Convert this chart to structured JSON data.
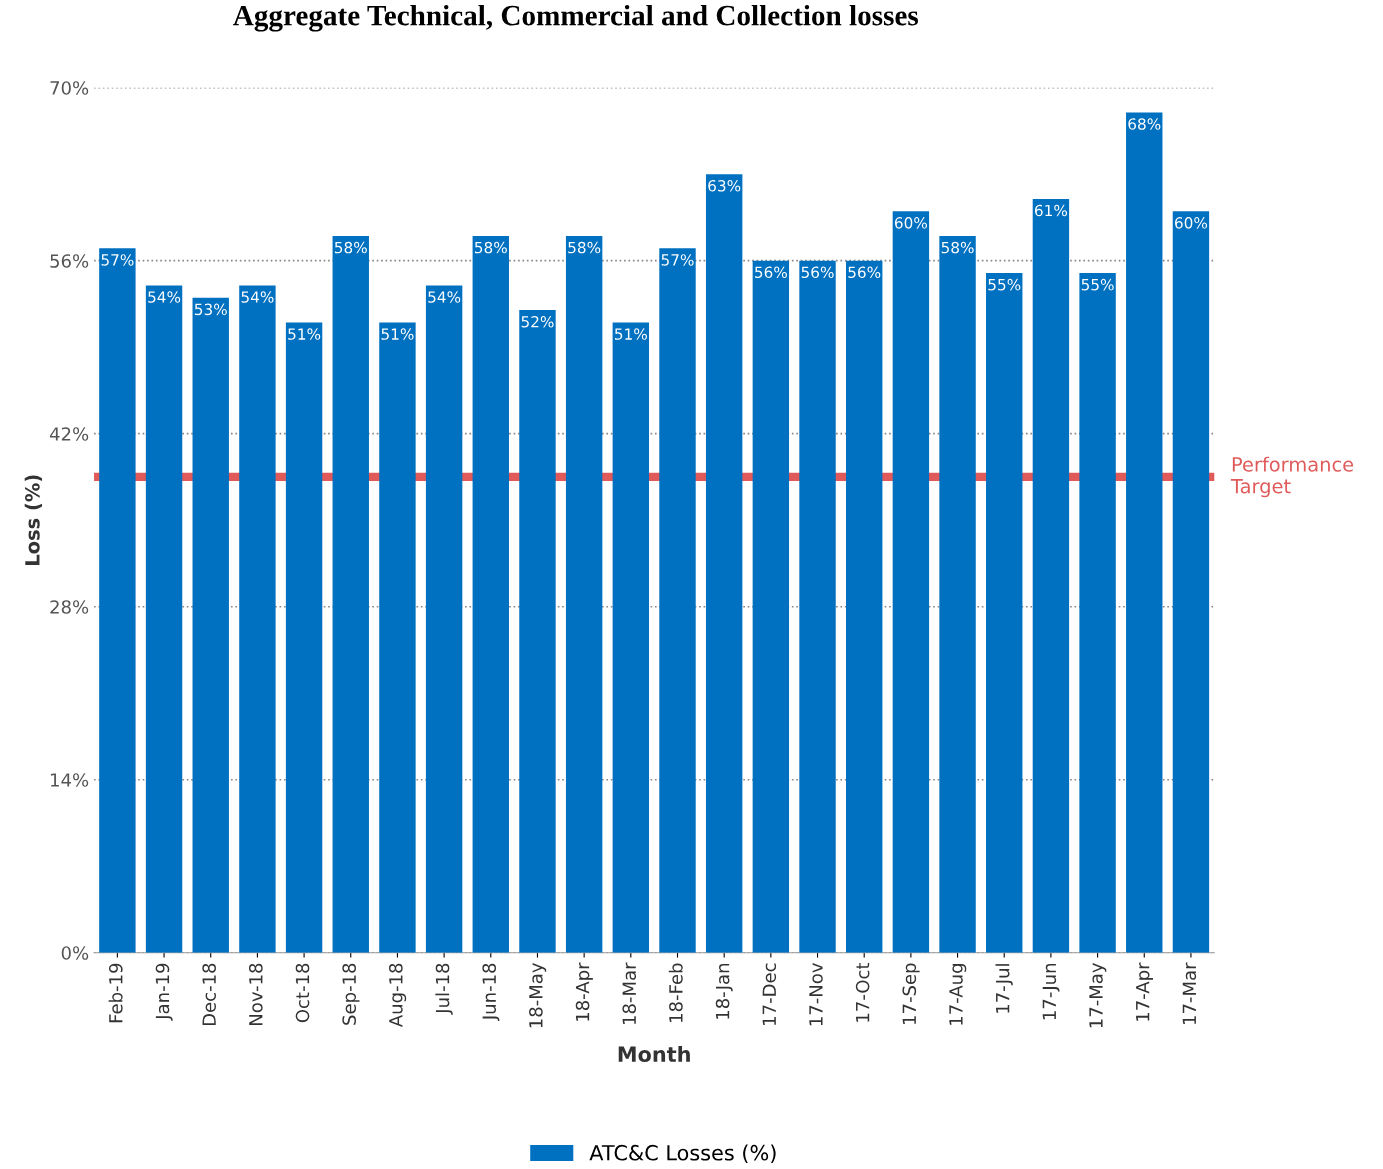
{
  "chart_data": {
    "type": "bar",
    "title": "Aggregate Technical, Commercial and Collection losses",
    "xlabel": "Month",
    "ylabel": "Loss (%)",
    "categories": [
      "Feb-19",
      "Jan-19",
      "Dec-18",
      "Nov-18",
      "Oct-18",
      "Sep-18",
      "Aug-18",
      "Jul-18",
      "Jun-18",
      "18-May",
      "18-Apr",
      "18-Mar",
      "18-Feb",
      "18-Jan",
      "17-Dec",
      "17-Nov",
      "17-Oct",
      "17-Sep",
      "17-Aug",
      "17-Jul",
      "17-Jun",
      "17-May",
      "17-Apr",
      "17-Mar"
    ],
    "series": [
      {
        "name": "ATC&C Losses (%)",
        "color": "#0070c0",
        "values": [
          57,
          54,
          53,
          54,
          51,
          58,
          51,
          54,
          58,
          52,
          58,
          51,
          57,
          63,
          56,
          56,
          56,
          60,
          58,
          55,
          61,
          55,
          68,
          60
        ],
        "value_labels": [
          "57%",
          "54%",
          "53%",
          "54%",
          "51%",
          "58%",
          "51%",
          "54%",
          "58%",
          "52%",
          "58%",
          "51%",
          "57%",
          "63%",
          "56%",
          "56%",
          "56%",
          "60%",
          "58%",
          "55%",
          "61%",
          "55%",
          "68%",
          "60%"
        ]
      }
    ],
    "ylim": [
      0,
      70
    ],
    "yticks": [
      {
        "value": 0,
        "label": "0%"
      },
      {
        "value": 14,
        "label": "14%"
      },
      {
        "value": 28,
        "label": "28%"
      },
      {
        "value": 42,
        "label": "42%"
      },
      {
        "value": 56,
        "label": "56%"
      },
      {
        "value": 70,
        "label": "70%"
      }
    ],
    "grid": "y",
    "legend": "bottom",
    "ref_lines": [
      {
        "axis": "y",
        "value": 38.5,
        "label": "Performance\nTarget",
        "color": "#e05a5a",
        "line_style": "solid"
      }
    ]
  }
}
